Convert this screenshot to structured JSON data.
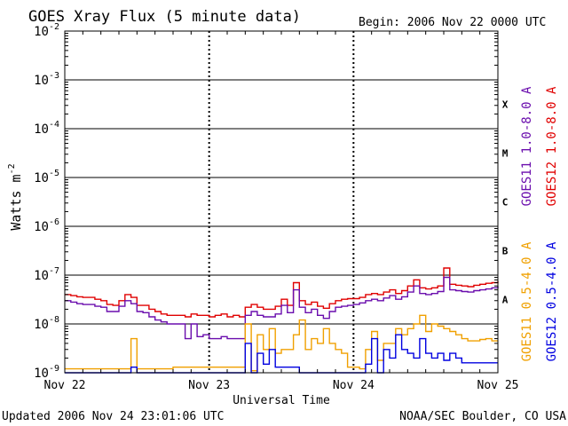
{
  "chart_data": {
    "type": "line",
    "title": "GOES Xray Flux (5 minute data)",
    "begin_label": "Begin:  2006 Nov 22 0000 UTC",
    "xlabel": "Universal Time",
    "ylabel": "Watts m",
    "ylabel_exponent": "-2",
    "yscale": "log",
    "ylim": [
      1e-09,
      0.01
    ],
    "xlim": [
      0,
      72
    ],
    "x_unit": "hours since 2006 Nov 22 0000 UTC",
    "x_ticks": [
      {
        "x": 0,
        "label": "Nov 22"
      },
      {
        "x": 24,
        "label": "Nov 23"
      },
      {
        "x": 48,
        "label": "Nov 24"
      },
      {
        "x": 72,
        "label": "Nov 25"
      }
    ],
    "y_ticks": [
      {
        "exp": -2,
        "base": "10",
        "sup": "-2"
      },
      {
        "exp": -3,
        "base": "10",
        "sup": "-3"
      },
      {
        "exp": -4,
        "base": "10",
        "sup": "-4"
      },
      {
        "exp": -5,
        "base": "10",
        "sup": "-5"
      },
      {
        "exp": -6,
        "base": "10",
        "sup": "-6"
      },
      {
        "exp": -7,
        "base": "10",
        "sup": "-7"
      },
      {
        "exp": -8,
        "base": "10",
        "sup": "-8"
      },
      {
        "exp": -9,
        "base": "10",
        "sup": "-9"
      }
    ],
    "flare_classes": [
      {
        "label": "X",
        "exp": -3.5
      },
      {
        "label": "M",
        "exp": -4.5
      },
      {
        "label": "C",
        "exp": -5.5
      },
      {
        "label": "B",
        "exp": -6.5
      },
      {
        "label": "A",
        "exp": -7.5
      }
    ],
    "legend": [
      {
        "text": "GOES11 1.0-8.0 A",
        "color": "#6a0dad"
      },
      {
        "text": "GOES12 1.0-8.0 A",
        "color": "#e00000"
      },
      {
        "text": "GOES11 0.5-4.0 A",
        "color": "#f0a000"
      },
      {
        "text": "GOES12 0.5-4.0 A",
        "color": "#0000e0"
      }
    ],
    "series": [
      {
        "name": "GOES12 1.0-8.0 A",
        "color": "#e00000",
        "x": [
          0,
          1,
          2,
          3,
          4,
          5,
          6,
          7,
          8,
          9,
          10,
          11,
          12,
          13,
          14,
          15,
          16,
          17,
          18,
          19,
          20,
          21,
          22,
          23,
          24,
          25,
          26,
          27,
          28,
          29,
          30,
          31,
          32,
          33,
          34,
          35,
          36,
          37,
          38,
          39,
          40,
          41,
          42,
          43,
          44,
          45,
          46,
          47,
          48,
          49,
          50,
          51,
          52,
          53,
          54,
          55,
          56,
          57,
          58,
          59,
          60,
          61,
          62,
          63,
          64,
          65,
          66,
          67,
          68,
          69,
          70,
          71,
          72
        ],
        "y": [
          4e-08,
          3.8e-08,
          3.6e-08,
          3.5e-08,
          3.5e-08,
          3.2e-08,
          3e-08,
          2.5e-08,
          2.4e-08,
          3e-08,
          4e-08,
          3.5e-08,
          2.4e-08,
          2.4e-08,
          2e-08,
          1.8e-08,
          1.6e-08,
          1.5e-08,
          1.5e-08,
          1.5e-08,
          1.4e-08,
          1.6e-08,
          1.5e-08,
          1.5e-08,
          1.4e-08,
          1.5e-08,
          1.6e-08,
          1.4e-08,
          1.5e-08,
          1.4e-08,
          2.2e-08,
          2.5e-08,
          2.2e-08,
          2e-08,
          2e-08,
          2.3e-08,
          3.2e-08,
          2.4e-08,
          7e-08,
          3e-08,
          2.5e-08,
          2.8e-08,
          2.3e-08,
          2.1e-08,
          2.6e-08,
          3e-08,
          3.2e-08,
          3.3e-08,
          3.3e-08,
          3.5e-08,
          4e-08,
          4.2e-08,
          4e-08,
          4.5e-08,
          5e-08,
          4.2e-08,
          4.8e-08,
          6e-08,
          8e-08,
          5.5e-08,
          5.2e-08,
          5.5e-08,
          6e-08,
          1.4e-07,
          6.5e-08,
          6.2e-08,
          6e-08,
          5.8e-08,
          6.2e-08,
          6.5e-08,
          6.8e-08,
          7e-08,
          7.5e-08
        ]
      },
      {
        "name": "GOES11 1.0-8.0 A",
        "color": "#6a0dad",
        "x": [
          0,
          1,
          2,
          3,
          4,
          5,
          6,
          7,
          8,
          9,
          10,
          11,
          12,
          13,
          14,
          15,
          16,
          17,
          18,
          19,
          20,
          21,
          22,
          23,
          24,
          25,
          26,
          27,
          28,
          29,
          30,
          31,
          32,
          33,
          34,
          35,
          36,
          37,
          38,
          39,
          40,
          41,
          42,
          43,
          44,
          45,
          46,
          47,
          48,
          49,
          50,
          51,
          52,
          53,
          54,
          55,
          56,
          57,
          58,
          59,
          60,
          61,
          62,
          63,
          64,
          65,
          66,
          67,
          68,
          69,
          70,
          71,
          72
        ],
        "y": [
          3e-08,
          2.8e-08,
          2.6e-08,
          2.5e-08,
          2.5e-08,
          2.3e-08,
          2.2e-08,
          1.8e-08,
          1.8e-08,
          2.3e-08,
          3e-08,
          2.6e-08,
          1.8e-08,
          1.7e-08,
          1.4e-08,
          1.2e-08,
          1.1e-08,
          1e-08,
          1e-08,
          1e-08,
          5e-09,
          1e-08,
          5.5e-09,
          6e-09,
          5e-09,
          5e-09,
          5.5e-09,
          5e-09,
          5e-09,
          5e-09,
          1.5e-08,
          1.8e-08,
          1.5e-08,
          1.4e-08,
          1.4e-08,
          1.6e-08,
          2.4e-08,
          1.7e-08,
          5e-08,
          2.2e-08,
          1.7e-08,
          2e-08,
          1.5e-08,
          1.3e-08,
          1.8e-08,
          2.2e-08,
          2.3e-08,
          2.4e-08,
          2.5e-08,
          2.7e-08,
          3e-08,
          3.2e-08,
          3e-08,
          3.4e-08,
          3.8e-08,
          3.2e-08,
          3.6e-08,
          4.5e-08,
          6e-08,
          4.2e-08,
          4e-08,
          4.2e-08,
          4.6e-08,
          9e-08,
          5e-08,
          4.8e-08,
          4.6e-08,
          4.5e-08,
          4.8e-08,
          5e-08,
          5.2e-08,
          5.5e-08,
          6e-08
        ]
      },
      {
        "name": "GOES11 0.5-4.0 A",
        "color": "#f0a000",
        "x": [
          0,
          2,
          4,
          6,
          8,
          10,
          11,
          12,
          14,
          16,
          18,
          20,
          22,
          24,
          26,
          28,
          29,
          30,
          31,
          32,
          33,
          34,
          35,
          36,
          37,
          38,
          39,
          40,
          41,
          42,
          43,
          44,
          45,
          46,
          47,
          48,
          49,
          50,
          51,
          52,
          53,
          54,
          55,
          56,
          57,
          58,
          59,
          60,
          61,
          62,
          63,
          64,
          65,
          66,
          67,
          68,
          69,
          70,
          71,
          72
        ],
        "y": [
          1.2e-09,
          1.2e-09,
          1.2e-09,
          1.2e-09,
          1.2e-09,
          1.2e-09,
          5e-09,
          1.2e-09,
          1.2e-09,
          1.2e-09,
          1.3e-09,
          1.3e-09,
          1.3e-09,
          1.3e-09,
          1.3e-09,
          1.3e-09,
          1.3e-09,
          1e-08,
          1.1e-09,
          6e-09,
          3e-09,
          8e-09,
          2.5e-09,
          3e-09,
          3e-09,
          6e-09,
          1.2e-08,
          3e-09,
          5e-09,
          4e-09,
          8e-09,
          4e-09,
          3e-09,
          2.5e-09,
          1.3e-09,
          1.3e-09,
          1.2e-09,
          3e-09,
          7e-09,
          1.8e-09,
          4e-09,
          4e-09,
          8e-09,
          6e-09,
          8e-09,
          1e-08,
          1.5e-08,
          7e-09,
          1e-08,
          9e-09,
          8e-09,
          7e-09,
          6e-09,
          5e-09,
          4.5e-09,
          4.5e-09,
          4.8e-09,
          5e-09,
          4.5e-09,
          4.5e-09
        ]
      },
      {
        "name": "GOES12 0.5-4.0 A",
        "color": "#0000e0",
        "x": [
          0,
          2,
          4,
          6,
          8,
          10,
          11,
          12,
          14,
          16,
          18,
          20,
          22,
          24,
          26,
          28,
          29,
          30,
          31,
          32,
          33,
          34,
          35,
          36,
          37,
          38,
          39,
          40,
          41,
          42,
          43,
          44,
          45,
          46,
          47,
          48,
          49,
          50,
          51,
          52,
          53,
          54,
          55,
          56,
          57,
          58,
          59,
          60,
          61,
          62,
          63,
          64,
          65,
          66,
          67,
          68,
          69,
          70,
          71,
          72
        ],
        "y": [
          7e-10,
          7e-10,
          7e-10,
          7e-10,
          7e-10,
          7e-10,
          1.3e-09,
          7e-10,
          7e-10,
          7e-10,
          7e-10,
          7e-10,
          7e-10,
          7e-10,
          7e-10,
          7e-10,
          7e-10,
          4e-09,
          7e-10,
          2.5e-09,
          1.5e-09,
          3e-09,
          1.3e-09,
          1.3e-09,
          1.3e-09,
          1.3e-09,
          7e-10,
          7e-10,
          7e-10,
          7e-10,
          7e-10,
          7e-10,
          7e-10,
          7e-10,
          7e-10,
          7e-10,
          7e-10,
          1.5e-09,
          5e-09,
          7e-10,
          3e-09,
          2e-09,
          6e-09,
          3e-09,
          2.5e-09,
          2e-09,
          5e-09,
          2.5e-09,
          2e-09,
          2.5e-09,
          1.8e-09,
          2.5e-09,
          2e-09,
          1.6e-09,
          1.6e-09,
          1.6e-09,
          1.6e-09,
          1.6e-09,
          1.6e-09,
          1.6e-09
        ]
      }
    ]
  },
  "footer": {
    "updated": "Updated 2006 Nov 24 23:01:06 UTC",
    "source": "NOAA/SEC Boulder, CO USA"
  }
}
